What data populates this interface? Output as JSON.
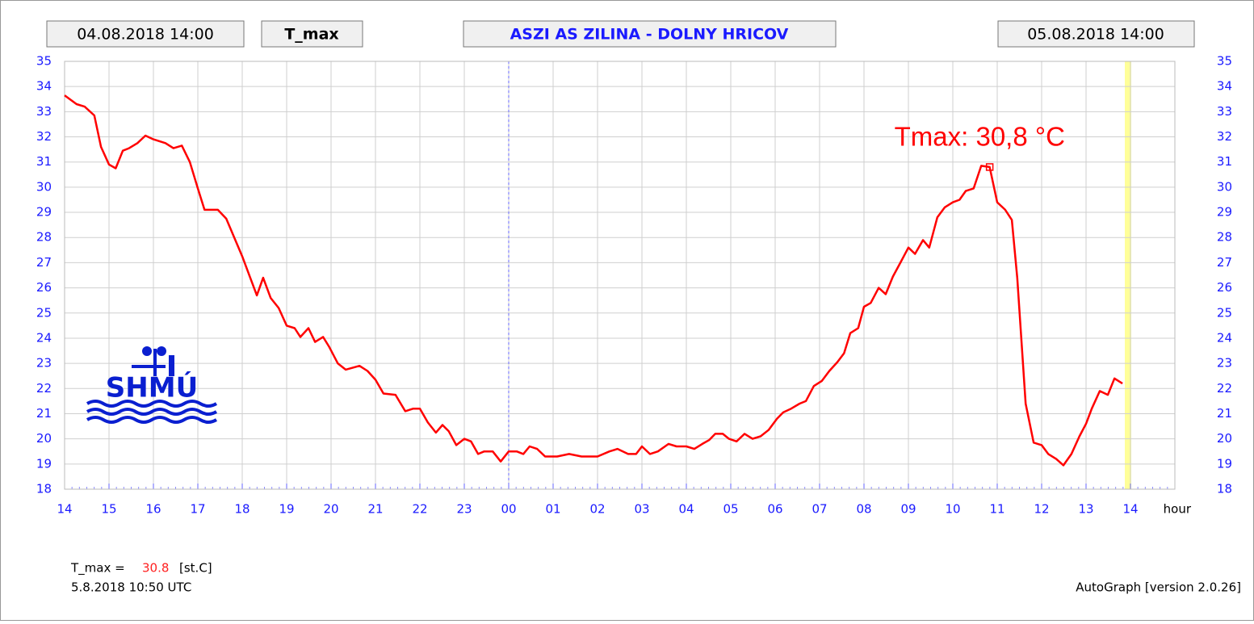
{
  "header": {
    "start": "04.08.2018 14:00",
    "variable": "T_max",
    "station": "ASZI AS ZILINA - DOLNY HRICOV",
    "end": "05.08.2018 14:00"
  },
  "chart_data": {
    "type": "line",
    "xlabel": "hour",
    "annotation": "Tmax: 30,8 °C",
    "xlim": [
      0,
      25
    ],
    "ylim": [
      18,
      35
    ],
    "xticks": [
      {
        "value": 0,
        "label": "14"
      },
      {
        "value": 1,
        "label": "15"
      },
      {
        "value": 2,
        "label": "16"
      },
      {
        "value": 3,
        "label": "17"
      },
      {
        "value": 4,
        "label": "18"
      },
      {
        "value": 5,
        "label": "19"
      },
      {
        "value": 6,
        "label": "20"
      },
      {
        "value": 7,
        "label": "21"
      },
      {
        "value": 8,
        "label": "22"
      },
      {
        "value": 9,
        "label": "23"
      },
      {
        "value": 10,
        "label": "00"
      },
      {
        "value": 11,
        "label": "01"
      },
      {
        "value": 12,
        "label": "02"
      },
      {
        "value": 13,
        "label": "03"
      },
      {
        "value": 14,
        "label": "04"
      },
      {
        "value": 15,
        "label": "05"
      },
      {
        "value": 16,
        "label": "06"
      },
      {
        "value": 17,
        "label": "07"
      },
      {
        "value": 18,
        "label": "08"
      },
      {
        "value": 19,
        "label": "09"
      },
      {
        "value": 20,
        "label": "10"
      },
      {
        "value": 21,
        "label": "11"
      },
      {
        "value": 22,
        "label": "12"
      },
      {
        "value": 23,
        "label": "13"
      },
      {
        "value": 24,
        "label": "14"
      }
    ],
    "yticks": [
      18,
      19,
      20,
      21,
      22,
      23,
      24,
      25,
      26,
      27,
      28,
      29,
      30,
      31,
      32,
      33,
      34,
      35
    ],
    "grid": true,
    "marker": {
      "x": 20.83,
      "value": 30.8
    },
    "series": [
      {
        "name": "T_max",
        "color": "#ff0000",
        "x": [
          0,
          0.27,
          0.45,
          0.67,
          0.82,
          1.0,
          1.15,
          1.31,
          1.45,
          1.64,
          1.82,
          2.0,
          2.27,
          2.45,
          2.64,
          2.82,
          3.0,
          3.15,
          3.45,
          3.64,
          3.82,
          4.0,
          4.18,
          4.33,
          4.47,
          4.64,
          4.82,
          5.0,
          5.18,
          5.31,
          5.49,
          5.64,
          5.82,
          5.96,
          6.15,
          6.33,
          6.64,
          6.82,
          7.0,
          7.18,
          7.45,
          7.67,
          7.85,
          8.0,
          8.18,
          8.36,
          8.51,
          8.65,
          8.82,
          9.0,
          9.15,
          9.31,
          9.45,
          9.64,
          9.82,
          10.0,
          10.18,
          10.33,
          10.47,
          10.64,
          10.82,
          11.09,
          11.36,
          11.64,
          12.0,
          12.27,
          12.45,
          12.69,
          12.87,
          13.0,
          13.18,
          13.36,
          13.6,
          13.78,
          14.0,
          14.18,
          14.36,
          14.51,
          14.65,
          14.82,
          14.96,
          15.13,
          15.31,
          15.49,
          15.67,
          15.85,
          16.04,
          16.18,
          16.36,
          16.55,
          16.69,
          16.87,
          17.05,
          17.22,
          17.4,
          17.55,
          17.69,
          17.87,
          18.0,
          18.15,
          18.33,
          18.49,
          18.65,
          18.82,
          19.0,
          19.15,
          19.33,
          19.47,
          19.65,
          19.82,
          20.0,
          20.15,
          20.29,
          20.47,
          20.64,
          20.83,
          21.0,
          21.18,
          21.33,
          21.45,
          21.64,
          21.82,
          22.0,
          22.15,
          22.33,
          22.49,
          22.67,
          22.85,
          23.0,
          23.13,
          23.31,
          23.49,
          23.64,
          23.82
        ],
        "values": [
          33.65,
          33.3,
          33.2,
          32.85,
          31.6,
          30.9,
          30.75,
          31.45,
          31.55,
          31.75,
          32.05,
          31.9,
          31.75,
          31.55,
          31.65,
          31.0,
          29.95,
          29.1,
          29.1,
          28.75,
          28.0,
          27.25,
          26.4,
          25.7,
          26.4,
          25.6,
          25.2,
          24.5,
          24.4,
          24.05,
          24.4,
          23.85,
          24.05,
          23.65,
          23.0,
          22.75,
          22.9,
          22.7,
          22.35,
          21.8,
          21.75,
          21.1,
          21.2,
          21.2,
          20.65,
          20.25,
          20.55,
          20.3,
          19.75,
          20.0,
          19.9,
          19.4,
          19.5,
          19.5,
          19.1,
          19.5,
          19.5,
          19.4,
          19.7,
          19.6,
          19.3,
          19.3,
          19.4,
          19.3,
          19.3,
          19.5,
          19.6,
          19.4,
          19.4,
          19.7,
          19.4,
          19.5,
          19.8,
          19.7,
          19.7,
          19.6,
          19.8,
          19.95,
          20.2,
          20.2,
          20.0,
          19.9,
          20.2,
          20.0,
          20.1,
          20.35,
          20.8,
          21.05,
          21.2,
          21.4,
          21.5,
          22.1,
          22.3,
          22.7,
          23.05,
          23.4,
          24.2,
          24.4,
          25.25,
          25.4,
          26.0,
          25.75,
          26.45,
          27.0,
          27.6,
          27.35,
          27.9,
          27.6,
          28.8,
          29.2,
          29.4,
          29.5,
          29.85,
          29.95,
          30.85,
          30.8,
          29.4,
          29.1,
          28.7,
          26.4,
          21.4,
          19.85,
          19.75,
          19.4,
          19.2,
          18.95,
          19.4,
          20.1,
          20.6,
          21.2,
          21.9,
          21.75,
          22.4,
          22.2
        ]
      }
    ]
  },
  "logo": "SHMÚ",
  "footer": {
    "label": "T_max =",
    "value": 30.8,
    "unit": "[st.C]",
    "time": "5.8.2018 10:50 UTC",
    "software": "AutoGraph [version 2.0.26]"
  }
}
